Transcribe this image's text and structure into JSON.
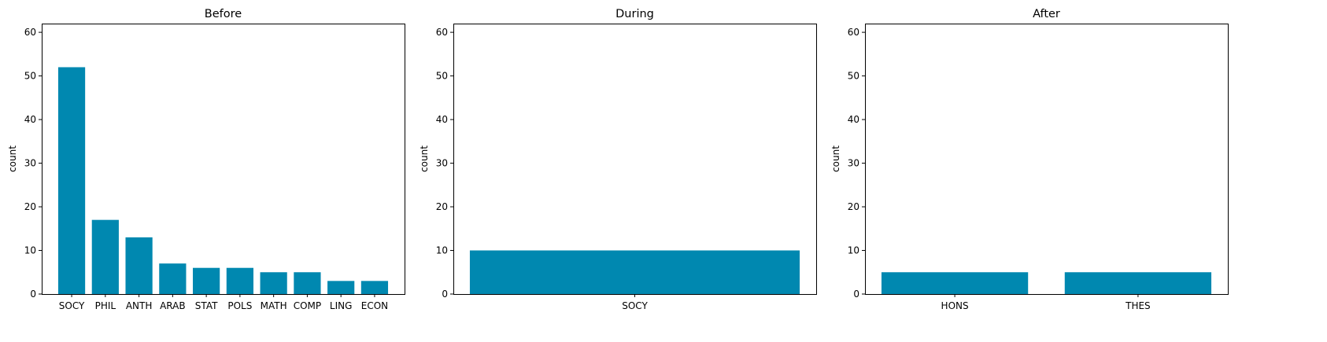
{
  "chart_data": [
    {
      "type": "bar",
      "title": "Before",
      "xlabel": "",
      "ylabel": "count",
      "ylim": [
        0,
        62
      ],
      "yticks": [
        0,
        10,
        20,
        30,
        40,
        50,
        60
      ],
      "grid": false,
      "categories": [
        "SOCY",
        "PHIL",
        "ANTH",
        "ARAB",
        "STAT",
        "POLS",
        "MATH",
        "COMP",
        "LING",
        "ECON"
      ],
      "values": [
        52,
        17,
        13,
        7,
        6,
        6,
        5,
        5,
        3,
        3
      ],
      "bar_color": "#0088b0"
    },
    {
      "type": "bar",
      "title": "During",
      "xlabel": "",
      "ylabel": "count",
      "ylim": [
        0,
        62
      ],
      "yticks": [
        0,
        10,
        20,
        30,
        40,
        50,
        60
      ],
      "grid": false,
      "categories": [
        "SOCY"
      ],
      "values": [
        10
      ],
      "bar_color": "#0088b0"
    },
    {
      "type": "bar",
      "title": "After",
      "xlabel": "",
      "ylabel": "count",
      "ylim": [
        0,
        62
      ],
      "yticks": [
        0,
        10,
        20,
        30,
        40,
        50,
        60
      ],
      "grid": false,
      "categories": [
        "HONS",
        "THES"
      ],
      "values": [
        5,
        5
      ],
      "bar_color": "#0088b0"
    }
  ]
}
